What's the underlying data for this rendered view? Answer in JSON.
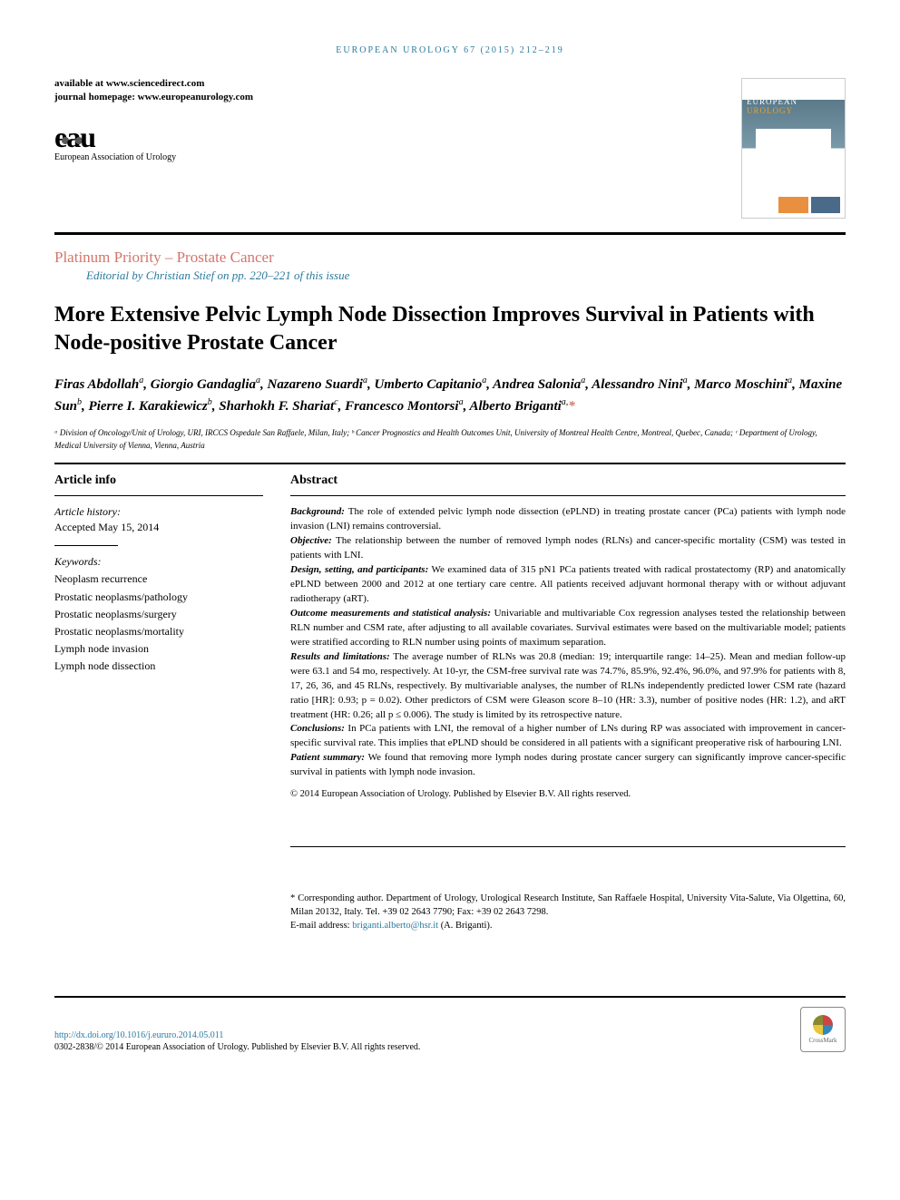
{
  "runningHeader": "EUROPEAN UROLOGY 67 (2015) 212–219",
  "availability": "available at www.sciencedirect.com",
  "homepage": "journal homepage: www.europeanurology.com",
  "eauLogoSubtitle": "European Association of Urology",
  "coverTitle1": "EUROPEAN",
  "coverTitle2": "UROLOGY",
  "sectionLabel": "Platinum Priority – Prostate Cancer",
  "editorialNote": "Editorial by Christian Stief on pp. 220–221 of this issue",
  "title": "More Extensive Pelvic Lymph Node Dissection Improves Survival in Patients with Node-positive Prostate Cancer",
  "authorsHtml": "Firas Abdollah<sup>a</sup>, Giorgio Gandaglia<sup>a</sup>, Nazareno Suardi<sup>a</sup>, Umberto Capitanio<sup>a</sup>, Andrea Salonia<sup>a</sup>, Alessandro Nini<sup>a</sup>, Marco Moschini<sup>a</sup>, Maxine Sun<sup>b</sup>, Pierre I. Karakiewicz<sup>b</sup>, Sharhokh F. Shariat<sup>c</sup>, Francesco Montorsi<sup>a</sup>, Alberto Briganti<sup>a,</sup><span class='asterisk'>*</span>",
  "affiliations": "ᵃ Division of Oncology/Unit of Urology, URI, IRCCS Ospedale San Raffaele, Milan, Italy; ᵇ Cancer Prognostics and Health Outcomes Unit, University of Montreal Health Centre, Montreal, Quebec, Canada; ᶜ Department of Urology, Medical University of Vienna, Vienna, Austria",
  "articleInfoHeading": "Article info",
  "abstractHeading": "Abstract",
  "historyHeading": "Article history:",
  "historyText": "Accepted May 15, 2014",
  "keywordsHeading": "Keywords:",
  "keywords": [
    "Neoplasm recurrence",
    "Prostatic neoplasms/pathology",
    "Prostatic neoplasms/surgery",
    "Prostatic neoplasms/mortality",
    "Lymph node invasion",
    "Lymph node dissection"
  ],
  "abstract": {
    "background": {
      "label": "Background:",
      "text": " The role of extended pelvic lymph node dissection (ePLND) in treating prostate cancer (PCa) patients with lymph node invasion (LNI) remains controversial."
    },
    "objective": {
      "label": "Objective:",
      "text": " The relationship between the number of removed lymph nodes (RLNs) and cancer-specific mortality (CSM) was tested in patients with LNI."
    },
    "design": {
      "label": "Design, setting, and participants:",
      "text": " We examined data of 315 pN1 PCa patients treated with radical prostatectomy (RP) and anatomically ePLND between 2000 and 2012 at one tertiary care centre. All patients received adjuvant hormonal therapy with or without adjuvant radiotherapy (aRT)."
    },
    "outcome": {
      "label": "Outcome measurements and statistical analysis:",
      "text": " Univariable and multivariable Cox regression analyses tested the relationship between RLN number and CSM rate, after adjusting to all available covariates. Survival estimates were based on the multivariable model; patients were stratified according to RLN number using points of maximum separation."
    },
    "results": {
      "label": "Results and limitations:",
      "text": " The average number of RLNs was 20.8 (median: 19; interquartile range: 14–25). Mean and median follow-up were 63.1 and 54 mo, respectively. At 10-yr, the CSM-free survival rate was 74.7%, 85.9%, 92.4%, 96.0%, and 97.9% for patients with 8, 17, 26, 36, and 45 RLNs, respectively. By multivariable analyses, the number of RLNs independently predicted lower CSM rate (hazard ratio [HR]: 0.93; p = 0.02). Other predictors of CSM were Gleason score 8–10 (HR: 3.3), number of positive nodes (HR: 1.2), and aRT treatment (HR: 0.26; all p ≤ 0.006). The study is limited by its retrospective nature."
    },
    "conclusions": {
      "label": "Conclusions:",
      "text": " In PCa patients with LNI, the removal of a higher number of LNs during RP was associated with improvement in cancer-specific survival rate. This implies that ePLND should be considered in all patients with a significant preoperative risk of harbouring LNI."
    },
    "patientSummary": {
      "label": "Patient summary:",
      "text": " We found that removing more lymph nodes during prostate cancer surgery can significantly improve cancer-specific survival in patients with lymph node invasion."
    }
  },
  "abstractCopyright": "© 2014 European Association of Urology. Published by Elsevier B.V. All rights reserved.",
  "correspondingAuthor": {
    "text": "* Corresponding author. Department of Urology, Urological Research Institute, San Raffaele Hospital, University Vita-Salute, Via Olgettina, 60, Milan 20132, Italy. Tel. +39 02 2643 7790; Fax: +39 02 2643 7298.",
    "emailLabel": "E-mail address: ",
    "email": "briganti.alberto@hsr.it",
    "emailSuffix": " (A. Briganti)."
  },
  "doi": "http://dx.doi.org/10.1016/j.eururo.2014.05.011",
  "footerCopyright": "0302-2838/© 2014 European Association of Urology. Published by Elsevier B.V. All rights reserved.",
  "crossmarkLabel": "CrossMark",
  "colors": {
    "headerBlue": "#2a7a9e",
    "sectionCoral": "#d4756a",
    "textBlack": "#000000"
  }
}
